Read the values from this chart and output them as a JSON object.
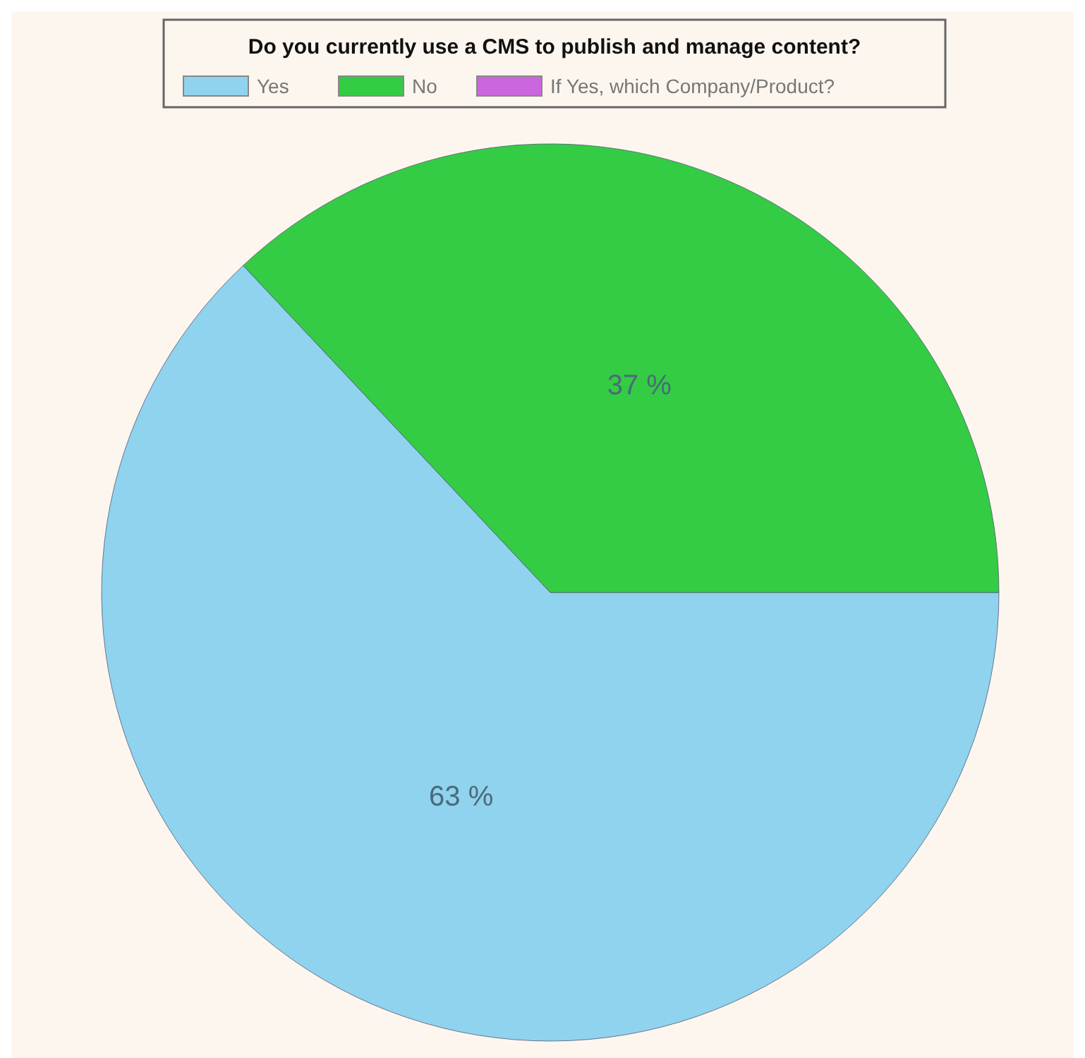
{
  "chart_data": {
    "type": "pie",
    "legend_title": "Do you currently use a CMS to publish and manage content?",
    "categories": [
      "Yes",
      "No",
      "If Yes, which Company/Product?"
    ],
    "values": [
      63,
      37,
      0
    ],
    "colors": [
      "#8fd3ee",
      "#33cc44",
      "#cc66dd"
    ],
    "value_labels": [
      "63 %",
      "37 %",
      null
    ],
    "legend": "top"
  }
}
